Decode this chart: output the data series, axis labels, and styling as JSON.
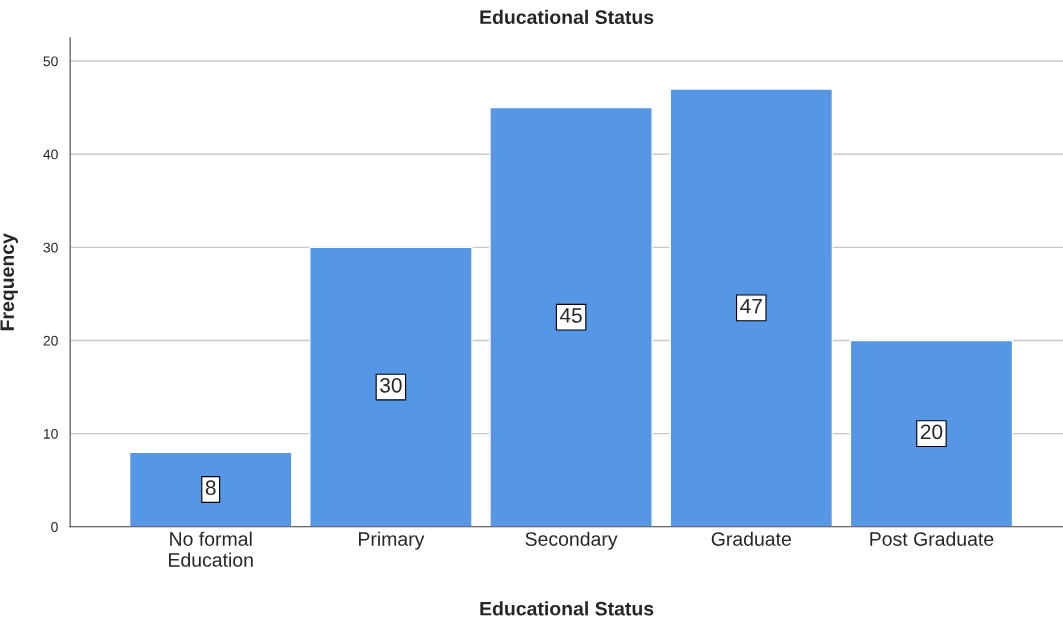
{
  "chart_data": {
    "type": "bar",
    "title": "Educational Status",
    "xlabel": "Educational Status",
    "ylabel": "Frequency",
    "categories": [
      "No formal\nEducation",
      "Primary",
      "Secondary",
      "Graduate",
      "Post Graduate"
    ],
    "values": [
      8,
      30,
      45,
      47,
      20
    ],
    "color": "#5596e5",
    "ylim": [
      0,
      52.5
    ],
    "yticks": [
      0,
      10,
      20,
      30,
      40,
      50
    ],
    "grid": "y",
    "data_labels": true
  }
}
